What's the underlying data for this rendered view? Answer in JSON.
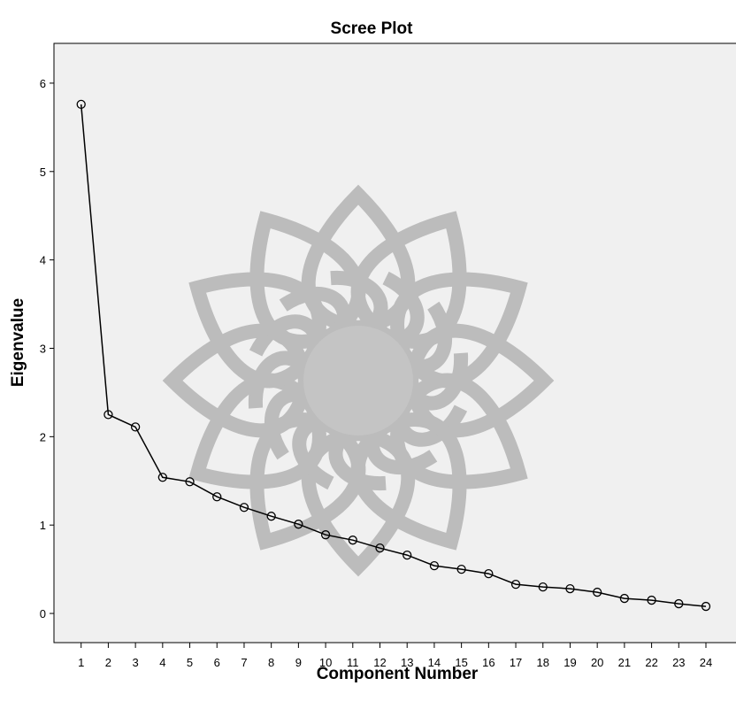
{
  "chart_data": {
    "type": "line",
    "title": "Scree Plot",
    "xlabel": "Component Number",
    "ylabel": "Eigenvalue",
    "x": [
      1,
      2,
      3,
      4,
      5,
      6,
      7,
      8,
      9,
      10,
      11,
      12,
      13,
      14,
      15,
      16,
      17,
      18,
      19,
      20,
      21,
      22,
      23,
      24
    ],
    "series": [
      {
        "values": [
          5.76,
          2.25,
          2.11,
          1.54,
          1.49,
          1.32,
          1.2,
          1.1,
          1.01,
          0.89,
          0.83,
          0.74,
          0.66,
          0.54,
          0.5,
          0.45,
          0.33,
          0.3,
          0.28,
          0.24,
          0.17,
          0.15,
          0.11,
          0.08
        ]
      }
    ],
    "x_ticks": [
      "1",
      "2",
      "3",
      "4",
      "5",
      "6",
      "7",
      "8",
      "9",
      "10",
      "11",
      "12",
      "13",
      "14",
      "15",
      "16",
      "17",
      "18",
      "19",
      "20",
      "21",
      "22",
      "23",
      "24"
    ],
    "y_ticks": [
      "0",
      "1",
      "2",
      "3",
      "4",
      "5",
      "6"
    ],
    "ylim": [
      -0.33,
      6.45
    ],
    "xlim": [
      0,
      25.4
    ],
    "grid": false,
    "legend": "none",
    "marker": "open-circle",
    "colors": {
      "plot_background": "#f0f0f0",
      "line": "#000000",
      "watermark": "#b3b3b3"
    }
  }
}
